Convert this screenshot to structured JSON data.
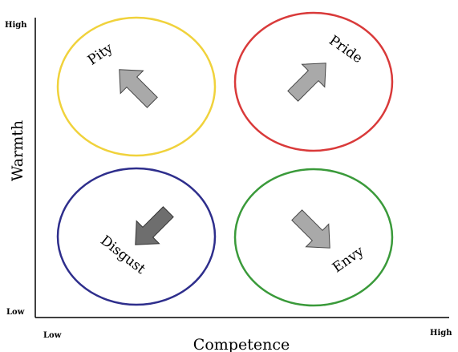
{
  "axes": {
    "y_label": "Warmth",
    "x_label": "Competence",
    "y_high": "High",
    "y_low": "Low",
    "x_low": "Low",
    "x_high": "High"
  },
  "quadrants": [
    {
      "key": "pity",
      "label": "Pity",
      "circle_color": "#F0D23C",
      "arrow_color": "#A9A9A9",
      "arrow_direction": "up-left"
    },
    {
      "key": "pride",
      "label": "Pride",
      "circle_color": "#D93A3A",
      "arrow_color": "#A9A9A9",
      "arrow_direction": "up-right"
    },
    {
      "key": "disgust",
      "label": "Disgust",
      "circle_color": "#2E2E8C",
      "arrow_color": "#6E6E6E",
      "arrow_direction": "down-left"
    },
    {
      "key": "envy",
      "label": "Envy",
      "circle_color": "#3A9A3A",
      "arrow_color": "#A9A9A9",
      "arrow_direction": "down-right"
    }
  ]
}
